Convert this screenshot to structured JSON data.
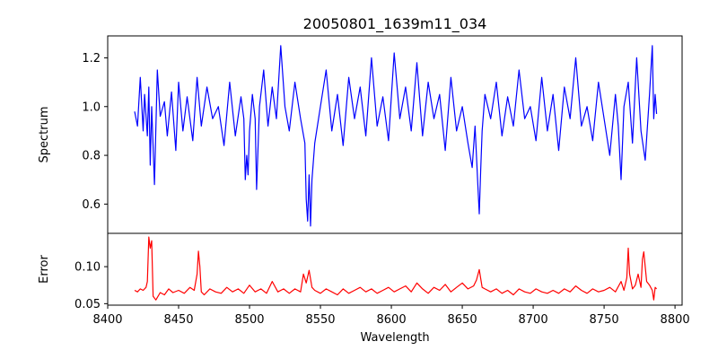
{
  "chart_data": {
    "type": "line",
    "title": "20050801_1639m11_034",
    "xlabel": "Wavelength",
    "xlim": [
      8400,
      8805
    ],
    "x_ticks": [
      8400,
      8450,
      8500,
      8550,
      8600,
      8650,
      8700,
      8750,
      8800
    ],
    "x_tick_labels": [
      "8400",
      "8450",
      "8500",
      "8550",
      "8600",
      "8650",
      "8700",
      "8750",
      "8800"
    ],
    "grid": false,
    "panels": [
      {
        "name": "spectrum",
        "ylabel": "Spectrum",
        "ylim": [
          0.48,
          1.29
        ],
        "y_ticks": [
          0.6,
          0.8,
          1.0,
          1.2
        ],
        "y_tick_labels": [
          "0.6",
          "0.8",
          "1.0",
          "1.2"
        ],
        "color": "#0000ff",
        "series": {
          "x": [
            8419,
            8421,
            8423,
            8425,
            8426,
            8428,
            8429,
            8430,
            8431,
            8433,
            8435,
            8437,
            8440,
            8442,
            8445,
            8448,
            8450,
            8453,
            8456,
            8460,
            8463,
            8466,
            8470,
            8474,
            8478,
            8482,
            8486,
            8490,
            8494,
            8496,
            8497,
            8498,
            8499,
            8500,
            8502,
            8504,
            8505,
            8507,
            8510,
            8513,
            8516,
            8519,
            8522,
            8525,
            8528,
            8532,
            8536,
            8539,
            8540,
            8541,
            8542,
            8543,
            8544,
            8546,
            8550,
            8554,
            8558,
            8562,
            8566,
            8570,
            8574,
            8578,
            8582,
            8586,
            8590,
            8594,
            8598,
            8602,
            8606,
            8610,
            8614,
            8618,
            8622,
            8626,
            8630,
            8634,
            8638,
            8642,
            8646,
            8650,
            8654,
            8657,
            8659,
            8661,
            8662,
            8663,
            8664,
            8666,
            8670,
            8674,
            8678,
            8682,
            8686,
            8690,
            8694,
            8698,
            8702,
            8706,
            8710,
            8714,
            8718,
            8722,
            8726,
            8730,
            8734,
            8738,
            8742,
            8746,
            8750,
            8754,
            8758,
            8760,
            8762,
            8764,
            8767,
            8770,
            8773,
            8776,
            8779,
            8782,
            8784,
            8785,
            8786,
            8787
          ],
          "values": [
            0.98,
            0.92,
            1.12,
            0.9,
            1.05,
            0.88,
            1.08,
            0.76,
            1.0,
            0.68,
            1.15,
            0.96,
            1.02,
            0.88,
            1.06,
            0.82,
            1.1,
            0.9,
            1.04,
            0.86,
            1.12,
            0.92,
            1.08,
            0.95,
            1.0,
            0.84,
            1.1,
            0.88,
            1.04,
            0.95,
            0.7,
            0.8,
            0.72,
            0.9,
            1.05,
            0.95,
            0.66,
            1.0,
            1.15,
            0.92,
            1.08,
            0.95,
            1.25,
            1.0,
            0.9,
            1.1,
            0.95,
            0.85,
            0.62,
            0.53,
            0.72,
            0.51,
            0.7,
            0.85,
            1.0,
            1.15,
            0.9,
            1.05,
            0.84,
            1.12,
            0.95,
            1.08,
            0.88,
            1.2,
            0.92,
            1.04,
            0.86,
            1.22,
            0.95,
            1.08,
            0.9,
            1.18,
            0.88,
            1.1,
            0.95,
            1.05,
            0.82,
            1.12,
            0.9,
            1.0,
            0.85,
            0.75,
            0.92,
            0.68,
            0.56,
            0.74,
            0.9,
            1.05,
            0.95,
            1.1,
            0.88,
            1.04,
            0.92,
            1.15,
            0.95,
            1.0,
            0.86,
            1.12,
            0.9,
            1.05,
            0.82,
            1.08,
            0.95,
            1.2,
            0.92,
            1.0,
            0.86,
            1.1,
            0.95,
            0.8,
            1.05,
            0.92,
            0.7,
            1.0,
            1.1,
            0.85,
            1.2,
            0.9,
            0.78,
            1.05,
            1.25,
            0.95,
            1.05,
            0.97
          ]
        }
      },
      {
        "name": "error",
        "ylabel": "Error",
        "ylim": [
          0.048,
          0.145
        ],
        "y_ticks": [
          0.05,
          0.1
        ],
        "y_tick_labels": [
          "0.05",
          "0.10"
        ],
        "color": "#ff0000",
        "series": {
          "x": [
            8419,
            8421,
            8423,
            8425,
            8427,
            8428,
            8429,
            8430,
            8431,
            8432,
            8434,
            8437,
            8440,
            8443,
            8446,
            8450,
            8454,
            8458,
            8461,
            8463,
            8464,
            8465,
            8466,
            8468,
            8472,
            8476,
            8480,
            8484,
            8488,
            8492,
            8496,
            8500,
            8504,
            8508,
            8512,
            8516,
            8520,
            8524,
            8528,
            8532,
            8536,
            8538,
            8540,
            8542,
            8544,
            8546,
            8550,
            8554,
            8558,
            8562,
            8566,
            8570,
            8574,
            8578,
            8582,
            8586,
            8590,
            8594,
            8598,
            8602,
            8606,
            8610,
            8614,
            8618,
            8622,
            8626,
            8630,
            8634,
            8638,
            8642,
            8646,
            8650,
            8654,
            8658,
            8660,
            8662,
            8664,
            8666,
            8670,
            8674,
            8678,
            8682,
            8686,
            8690,
            8694,
            8698,
            8702,
            8706,
            8710,
            8714,
            8718,
            8722,
            8726,
            8730,
            8734,
            8738,
            8742,
            8746,
            8750,
            8754,
            8758,
            8762,
            8764,
            8766,
            8767,
            8768,
            8770,
            8772,
            8774,
            8776,
            8777,
            8778,
            8780,
            8782,
            8784,
            8785,
            8786,
            8787
          ],
          "values": [
            0.068,
            0.066,
            0.07,
            0.068,
            0.072,
            0.08,
            0.14,
            0.125,
            0.135,
            0.06,
            0.055,
            0.065,
            0.062,
            0.07,
            0.065,
            0.068,
            0.064,
            0.072,
            0.068,
            0.09,
            0.121,
            0.1,
            0.066,
            0.062,
            0.07,
            0.066,
            0.064,
            0.072,
            0.066,
            0.07,
            0.064,
            0.075,
            0.066,
            0.07,
            0.064,
            0.08,
            0.066,
            0.07,
            0.064,
            0.07,
            0.066,
            0.09,
            0.078,
            0.095,
            0.072,
            0.068,
            0.064,
            0.07,
            0.066,
            0.062,
            0.07,
            0.064,
            0.068,
            0.072,
            0.066,
            0.07,
            0.064,
            0.068,
            0.072,
            0.066,
            0.07,
            0.074,
            0.066,
            0.078,
            0.07,
            0.064,
            0.072,
            0.068,
            0.076,
            0.066,
            0.072,
            0.078,
            0.07,
            0.074,
            0.082,
            0.096,
            0.072,
            0.07,
            0.066,
            0.07,
            0.064,
            0.068,
            0.062,
            0.07,
            0.066,
            0.064,
            0.07,
            0.066,
            0.064,
            0.068,
            0.064,
            0.07,
            0.066,
            0.074,
            0.068,
            0.064,
            0.07,
            0.066,
            0.068,
            0.072,
            0.066,
            0.08,
            0.068,
            0.085,
            0.125,
            0.09,
            0.07,
            0.075,
            0.09,
            0.072,
            0.11,
            0.12,
            0.08,
            0.075,
            0.068,
            0.055,
            0.072,
            0.07
          ]
        }
      }
    ]
  }
}
